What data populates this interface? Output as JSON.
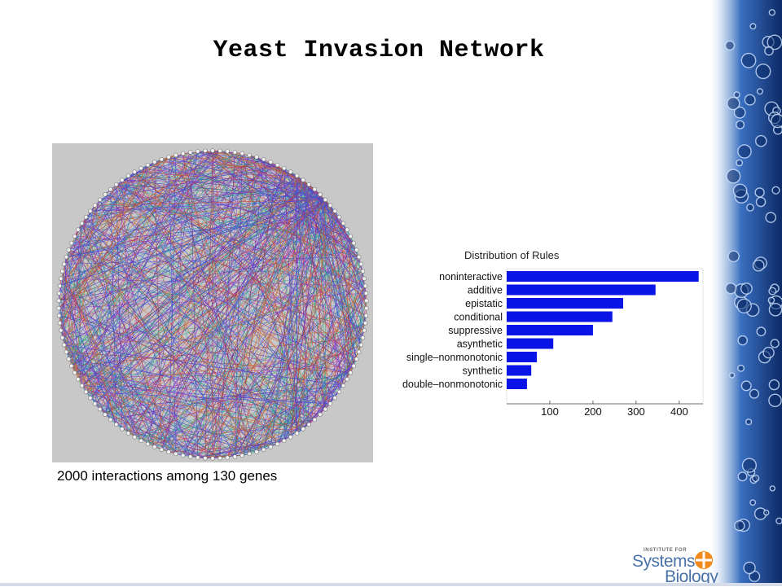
{
  "title": "Yeast Invasion Network",
  "network": {
    "caption": "2000 interactions among 130 genes",
    "node_count": 130,
    "edge_count": 2000,
    "background_color": "#c8c8c8",
    "edge_colors": [
      "#2020c0",
      "#c0209a",
      "#20a060",
      "#2c6fd0",
      "#b02020",
      "#20a0a0",
      "#8a3ac0",
      "#d06020",
      "#4040e0"
    ]
  },
  "chart_data": {
    "type": "bar",
    "orientation": "horizontal",
    "title": "Distribution of Rules",
    "categories": [
      "noninteractive",
      "additive",
      "epistatic",
      "conditional",
      "suppressive",
      "asynthetic",
      "single–nonmonotonic",
      "synthetic",
      "double–nonmonotonic"
    ],
    "values": [
      445,
      345,
      270,
      245,
      200,
      108,
      70,
      57,
      47
    ],
    "xlim": [
      0,
      455
    ],
    "xticks": [
      "100",
      "200",
      "300",
      "400"
    ],
    "bar_color": "#0a14e6",
    "xlabel": "",
    "ylabel": "",
    "grid": false
  },
  "logo": {
    "small_text": "INSTITUTE FOR",
    "line1": "Systems",
    "line2": "Biology",
    "accent_color": "#f08a1c",
    "text_color": "#4a72a8"
  }
}
